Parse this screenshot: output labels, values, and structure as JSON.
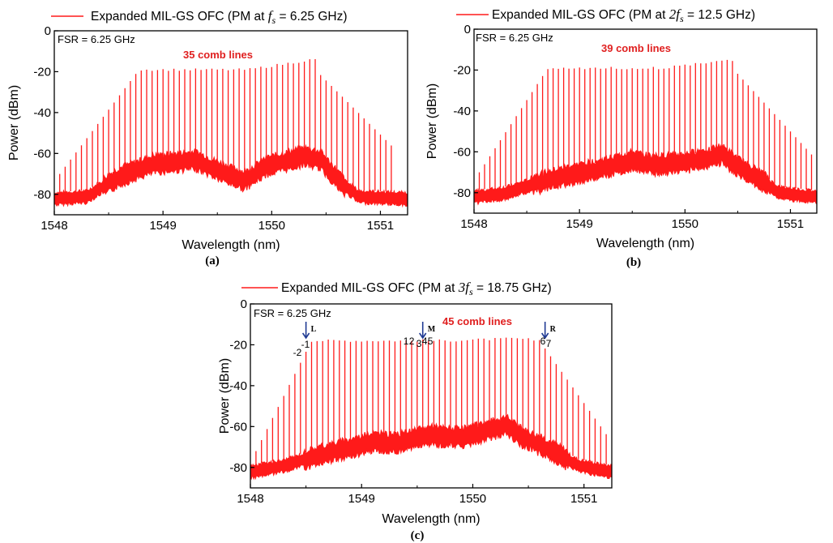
{
  "panel_labels": [
    "(a)",
    "(b)",
    "(c)"
  ],
  "colors": {
    "series": "#ff1a1a",
    "annotation": "#e02020",
    "arrow": "#1f3a93",
    "axis": "#000000"
  },
  "chart_data": [
    {
      "type": "line",
      "panel": "(a)",
      "legend": {
        "text": "Expanded MIL-GS OFC (PM at",
        "math": "f_s",
        "value": "= 6.25 GHz)",
        "placement": "top"
      },
      "annotations": {
        "fsr": "FSR = 6.25 GHz",
        "comb_count": "35 comb lines"
      },
      "xlabel": "Wavelength (nm)",
      "ylabel": "Power (dBm)",
      "xlim": [
        1548.0,
        1551.25
      ],
      "ylim": [
        -90,
        0
      ],
      "xticks": [
        "1548",
        "1549",
        "1550",
        "1551"
      ],
      "yticks": [
        "0",
        "-20",
        "-40",
        "-60",
        "-80"
      ],
      "grid": false,
      "comb": {
        "x_start": 1548.05,
        "spacing_nm": 0.05,
        "count": 62,
        "flat_top_start": 1548.78,
        "flat_top_end": 1550.4,
        "peak_wavelength": 1550.38,
        "top_level_dbm": -19,
        "peak_dbm": -14,
        "edge_low_dbm": -70,
        "edge_high_dbm": -63
      },
      "noise_floor": [
        [
          1548.0,
          -81
        ],
        [
          1548.3,
          -80
        ],
        [
          1548.6,
          -70
        ],
        [
          1548.9,
          -64
        ],
        [
          1549.3,
          -62
        ],
        [
          1549.55,
          -68
        ],
        [
          1549.75,
          -72
        ],
        [
          1549.95,
          -65
        ],
        [
          1550.3,
          -60
        ],
        [
          1550.45,
          -62
        ],
        [
          1550.65,
          -74
        ],
        [
          1550.8,
          -80
        ],
        [
          1551.25,
          -81
        ]
      ]
    },
    {
      "type": "line",
      "panel": "(b)",
      "legend": {
        "text": "Expanded MIL-GS OFC (PM  at",
        "math": "2f_s",
        "value": "= 12.5 GHz)",
        "placement": "top"
      },
      "annotations": {
        "fsr": "FSR = 6.25 GHz",
        "comb_count": "39 comb lines"
      },
      "xlabel": "Wavelength (nm)",
      "ylabel": "Power (dBm)",
      "xlim": [
        1548.0,
        1551.25
      ],
      "ylim": [
        -90,
        0
      ],
      "xticks": [
        "1548",
        "1549",
        "1550",
        "1551"
      ],
      "yticks": [
        "0",
        "-20",
        "-40",
        "-60",
        "-80"
      ],
      "grid": false,
      "comb": {
        "x_start": 1548.05,
        "spacing_nm": 0.05,
        "count": 64,
        "flat_top_start": 1548.7,
        "flat_top_end": 1550.45,
        "peak_wavelength": 1550.38,
        "top_level_dbm": -19,
        "peak_dbm": -15,
        "edge_low_dbm": -70,
        "edge_high_dbm": -63
      },
      "noise_floor": [
        [
          1548.0,
          -81
        ],
        [
          1548.3,
          -79
        ],
        [
          1548.6,
          -74
        ],
        [
          1548.9,
          -70
        ],
        [
          1549.2,
          -67
        ],
        [
          1549.5,
          -63
        ],
        [
          1549.7,
          -65
        ],
        [
          1550.0,
          -64
        ],
        [
          1550.35,
          -60
        ],
        [
          1550.5,
          -66
        ],
        [
          1550.7,
          -72
        ],
        [
          1550.9,
          -79
        ],
        [
          1551.25,
          -81
        ]
      ]
    },
    {
      "type": "line",
      "panel": "(c)",
      "legend": {
        "text": "Expanded MIL-GS OFC (PM at",
        "math": "3f_s",
        "value": "= 18.75 GHz)",
        "placement": "top"
      },
      "annotations": {
        "fsr": "FSR = 6.25 GHz",
        "comb_count": "45 comb lines"
      },
      "markers": [
        {
          "label": "L",
          "wavelength": 1548.5,
          "numbers": [
            "-1",
            "-2"
          ]
        },
        {
          "label": "M",
          "wavelength": 1549.55,
          "numbers": [
            "1",
            "2",
            "3",
            "4",
            "5"
          ]
        },
        {
          "label": "R",
          "wavelength": 1550.65,
          "numbers": [
            "6",
            "7"
          ]
        }
      ],
      "xlabel": "Wavelength (nm)",
      "ylabel": "Power (dBm)",
      "xlim": [
        1548.0,
        1551.25
      ],
      "ylim": [
        -90,
        0
      ],
      "xticks": [
        "1548",
        "1549",
        "1550",
        "1551"
      ],
      "yticks": [
        "0",
        "-20",
        "-40",
        "-60",
        "-80"
      ],
      "grid": false,
      "comb": {
        "x_start": 1548.05,
        "spacing_nm": 0.05,
        "count": 64,
        "flat_top_start": 1548.55,
        "flat_top_end": 1550.6,
        "peak_wavelength": 1550.35,
        "top_level_dbm": -18,
        "peak_dbm": -17,
        "edge_low_dbm": -72,
        "edge_high_dbm": -66
      },
      "noise_floor": [
        [
          1548.0,
          -81
        ],
        [
          1548.3,
          -78
        ],
        [
          1548.6,
          -73
        ],
        [
          1548.9,
          -69
        ],
        [
          1549.1,
          -66
        ],
        [
          1549.3,
          -67
        ],
        [
          1549.6,
          -63
        ],
        [
          1549.9,
          -64
        ],
        [
          1550.3,
          -58
        ],
        [
          1550.45,
          -64
        ],
        [
          1550.7,
          -70
        ],
        [
          1550.95,
          -78
        ],
        [
          1551.25,
          -81
        ]
      ]
    }
  ]
}
